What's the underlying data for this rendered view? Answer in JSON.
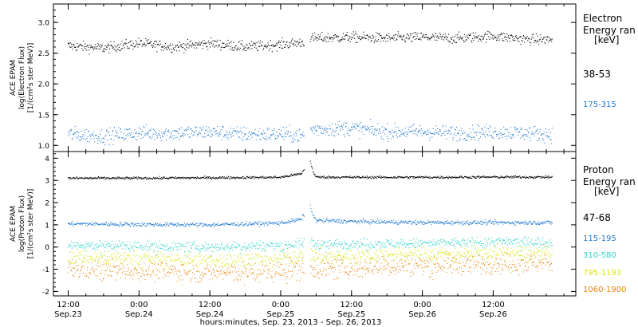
{
  "chart_data": [
    {
      "type": "scatter",
      "panel": "electron",
      "ylabel_lines": [
        "ACE EPAM",
        "log(Electron Flux)",
        "[1/(cm²s ster MeV)]"
      ],
      "ylim": [
        0.9,
        3.3
      ],
      "yticks": [
        1.0,
        1.5,
        2.0,
        2.5,
        3.0
      ],
      "ytick_labels": [
        "1.0",
        "1.5",
        "2.0",
        "2.5",
        "3.0"
      ],
      "legend_title": [
        "Electron",
        "Energy ran",
        "[keV]"
      ],
      "data_gap": {
        "start_hour": 40.0,
        "end_hour": 41.0
      },
      "series": [
        {
          "name": "38-53",
          "color": "#000000",
          "values_by_hour": [
            [
              0,
              2.62
            ],
            [
              6,
              2.58
            ],
            [
              12,
              2.66
            ],
            [
              18,
              2.6
            ],
            [
              24,
              2.66
            ],
            [
              30,
              2.6
            ],
            [
              36,
              2.64
            ],
            [
              40,
              2.68
            ],
            [
              41,
              2.74
            ],
            [
              48,
              2.76
            ],
            [
              54,
              2.74
            ],
            [
              60,
              2.76
            ],
            [
              66,
              2.74
            ],
            [
              72,
              2.78
            ],
            [
              78,
              2.72
            ],
            [
              82,
              2.72
            ]
          ]
        },
        {
          "name": "175-315",
          "color": "#1f78d1",
          "values_by_hour": [
            [
              0,
              1.18
            ],
            [
              6,
              1.15
            ],
            [
              12,
              1.2
            ],
            [
              18,
              1.2
            ],
            [
              24,
              1.22
            ],
            [
              30,
              1.18
            ],
            [
              36,
              1.18
            ],
            [
              40,
              1.16
            ],
            [
              41,
              1.26
            ],
            [
              48,
              1.28
            ],
            [
              54,
              1.22
            ],
            [
              60,
              1.22
            ],
            [
              66,
              1.2
            ],
            [
              72,
              1.22
            ],
            [
              78,
              1.2
            ],
            [
              82,
              1.18
            ]
          ]
        }
      ]
    },
    {
      "type": "scatter",
      "panel": "proton",
      "ylabel_lines": [
        "ACE EPAM",
        "log(Proton Flux)",
        "[1/(cm²s ster MeV)]"
      ],
      "ylim": [
        -2.2,
        4.3
      ],
      "yticks": [
        -2,
        -1,
        0,
        1,
        2,
        3,
        4
      ],
      "ytick_labels": [
        "-2",
        "-1",
        "0",
        "1",
        "2",
        "3",
        "4"
      ],
      "legend_title": [
        "Proton",
        "Energy ran",
        "[keV]"
      ],
      "data_gap": {
        "start_hour": 40.0,
        "end_hour": 41.0
      },
      "series": [
        {
          "name": "47-68",
          "color": "#000000",
          "values_by_hour": [
            [
              0,
              3.1
            ],
            [
              12,
              3.1
            ],
            [
              24,
              3.12
            ],
            [
              36,
              3.14
            ],
            [
              39.5,
              3.3
            ],
            [
              41,
              3.9
            ],
            [
              41.5,
              3.4
            ],
            [
              42,
              3.15
            ],
            [
              48,
              3.14
            ],
            [
              60,
              3.14
            ],
            [
              72,
              3.15
            ],
            [
              82,
              3.15
            ]
          ]
        },
        {
          "name": "115-195",
          "color": "#1f78d1",
          "values_by_hour": [
            [
              0,
              1.05
            ],
            [
              12,
              1.02
            ],
            [
              24,
              1.0
            ],
            [
              36,
              1.08
            ],
            [
              39.5,
              1.25
            ],
            [
              41,
              1.9
            ],
            [
              41.5,
              1.4
            ],
            [
              42,
              1.2
            ],
            [
              48,
              1.15
            ],
            [
              60,
              1.1
            ],
            [
              72,
              1.1
            ],
            [
              82,
              1.1
            ]
          ]
        },
        {
          "name": "310-580",
          "color": "#30d5c8",
          "values_by_hour": [
            [
              0,
              0.1
            ],
            [
              12,
              0.05
            ],
            [
              24,
              0.0
            ],
            [
              36,
              0.08
            ],
            [
              39.5,
              0.15
            ],
            [
              41,
              0.3
            ],
            [
              42,
              0.1
            ],
            [
              48,
              0.15
            ],
            [
              60,
              0.15
            ],
            [
              72,
              0.25
            ],
            [
              82,
              0.2
            ]
          ]
        },
        {
          "name": "795-1193",
          "color": "#d9e80a",
          "values_by_hour": [
            [
              0,
              -0.45
            ],
            [
              12,
              -0.5
            ],
            [
              24,
              -0.6
            ],
            [
              36,
              -0.5
            ],
            [
              39.5,
              -0.4
            ],
            [
              41,
              -0.35
            ],
            [
              42,
              -0.45
            ],
            [
              48,
              -0.4
            ],
            [
              60,
              -0.3
            ],
            [
              72,
              -0.25
            ],
            [
              82,
              -0.3
            ]
          ]
        },
        {
          "name": "1060-1900",
          "color": "#e8860a",
          "values_by_hour": [
            [
              0,
              -1.0
            ],
            [
              12,
              -1.05
            ],
            [
              24,
              -1.15
            ],
            [
              36,
              -1.1
            ],
            [
              39.5,
              -0.95
            ],
            [
              41,
              -1.0
            ],
            [
              42,
              -1.0
            ],
            [
              48,
              -0.95
            ],
            [
              60,
              -0.8
            ],
            [
              72,
              -0.75
            ],
            [
              82,
              -0.7
            ]
          ]
        }
      ]
    }
  ],
  "xaxis": {
    "label": "hours:minutes, Sep. 23, 2013 - Sep. 26, 2013",
    "xlim_hours": [
      -2.5,
      86.0
    ],
    "major_ticks": [
      {
        "hour": 0,
        "time": "12:00",
        "date": "Sep.23"
      },
      {
        "hour": 12,
        "time": "0:00",
        "date": "Sep.24"
      },
      {
        "hour": 24,
        "time": "12:00",
        "date": "Sep.24"
      },
      {
        "hour": 36,
        "time": "0:00",
        "date": "Sep.25"
      },
      {
        "hour": 48,
        "time": "12:00",
        "date": "Sep.25"
      },
      {
        "hour": 60,
        "time": "0:00",
        "date": "Sep.26"
      },
      {
        "hour": 72,
        "time": "12:00",
        "date": "Sep.26"
      }
    ],
    "minor_tick_step_hours": 3
  }
}
